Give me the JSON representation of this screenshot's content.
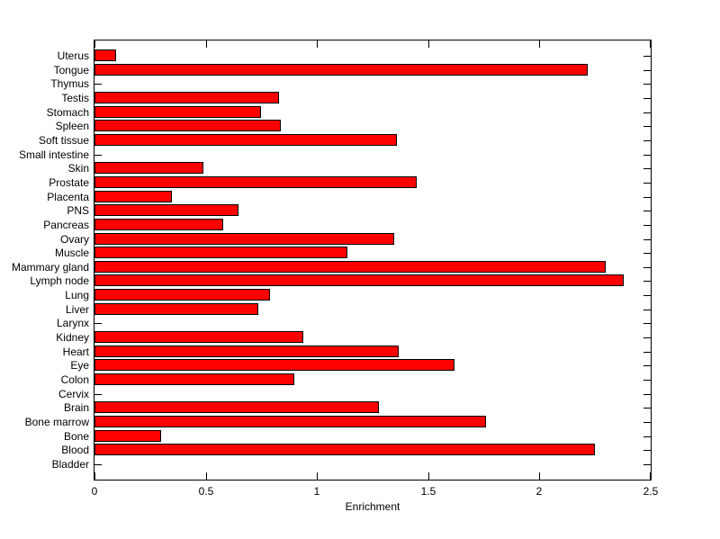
{
  "figure": {
    "background": "#ffffff",
    "text_color": "#000000",
    "axis_color": "#000000"
  },
  "chart_data": {
    "type": "bar",
    "orientation": "horizontal",
    "title": "",
    "xlabel": "Enrichment",
    "ylabel": "",
    "xlim": [
      0,
      2.5
    ],
    "xticks": [
      0,
      0.5,
      1,
      1.5,
      2,
      2.5
    ],
    "xtick_labels": [
      "0",
      "0.5",
      "1",
      "1.5",
      "2",
      "2.5"
    ],
    "grid": false,
    "legend": null,
    "bar_color": "#FF0000",
    "bar_edge_color": "#000000",
    "categories": [
      "Uterus",
      "Tongue",
      "Thymus",
      "Testis",
      "Stomach",
      "Spleen",
      "Soft tissue",
      "Small intestine",
      "Skin",
      "Prostate",
      "Placenta",
      "PNS",
      "Pancreas",
      "Ovary",
      "Muscle",
      "Mammary gland",
      "Lymph node",
      "Lung",
      "Liver",
      "Larynx",
      "Kidney",
      "Heart",
      "Eye",
      "Colon",
      "Cervix",
      "Brain",
      "Bone marrow",
      "Bone",
      "Blood",
      "Bladder"
    ],
    "values": [
      0.09,
      2.21,
      0,
      0.82,
      0.74,
      0.83,
      1.35,
      0,
      0.48,
      1.44,
      0.34,
      0.64,
      0.57,
      1.34,
      1.13,
      2.29,
      2.37,
      0.78,
      0.73,
      0,
      0.93,
      1.36,
      1.61,
      0.89,
      0,
      1.27,
      1.75,
      0.29,
      2.24,
      0
    ]
  }
}
